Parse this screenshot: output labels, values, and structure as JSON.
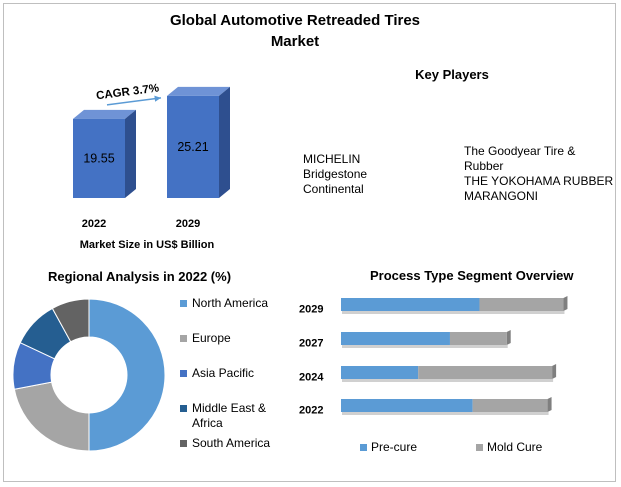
{
  "title": "Global Automotive Retreaded Tires Market",
  "key_players": {
    "title": "Key Players",
    "col1": [
      "MICHELIN",
      "Bridgestone",
      "Continental"
    ],
    "col2": [
      "The Goodyear Tire &",
      "Rubber",
      "THE YOKOHAMA RUBBER",
      "MARANGONI"
    ]
  },
  "colors": {
    "bar_blue": "#4472c4",
    "bar_blue_dark": "#2e4f8f",
    "donut": [
      "#5b9bd5",
      "#a5a5a5",
      "#4472c4",
      "#255e91",
      "#636363"
    ],
    "precure": "#5b9bd5",
    "moldcure": "#a5a5a5"
  },
  "chart_data": [
    {
      "type": "bar",
      "categories": [
        "2022",
        "2029"
      ],
      "values": [
        19.55,
        25.21
      ],
      "xlabel": "Market Size in US$ Billion",
      "annotation": "CAGR 3.7%",
      "ylim": [
        0,
        26
      ]
    },
    {
      "type": "pie",
      "title": "Regional Analysis in 2022 (%)",
      "labels": [
        "North America",
        "Europe",
        "Asia Pacific",
        "Middle East & Africa",
        "South America"
      ],
      "legend_lines": [
        [
          "North America"
        ],
        [
          "Europe"
        ],
        [
          "Asia Pacific"
        ],
        [
          "Middle East &",
          "Africa"
        ],
        [
          "South America"
        ]
      ],
      "values": [
        50,
        22,
        10,
        10,
        8
      ]
    },
    {
      "type": "bar",
      "orientation": "horizontal",
      "stacked": true,
      "title": "Process Type Segment Overview",
      "categories": [
        "2029",
        "2027",
        "2024",
        "2022"
      ],
      "series": [
        {
          "name": "Pre-cure",
          "values": [
            61,
            48,
            34,
            58
          ]
        },
        {
          "name": "Mold Cure",
          "values": [
            37,
            25,
            59,
            33
          ]
        }
      ],
      "xlim": [
        0,
        100
      ]
    }
  ]
}
